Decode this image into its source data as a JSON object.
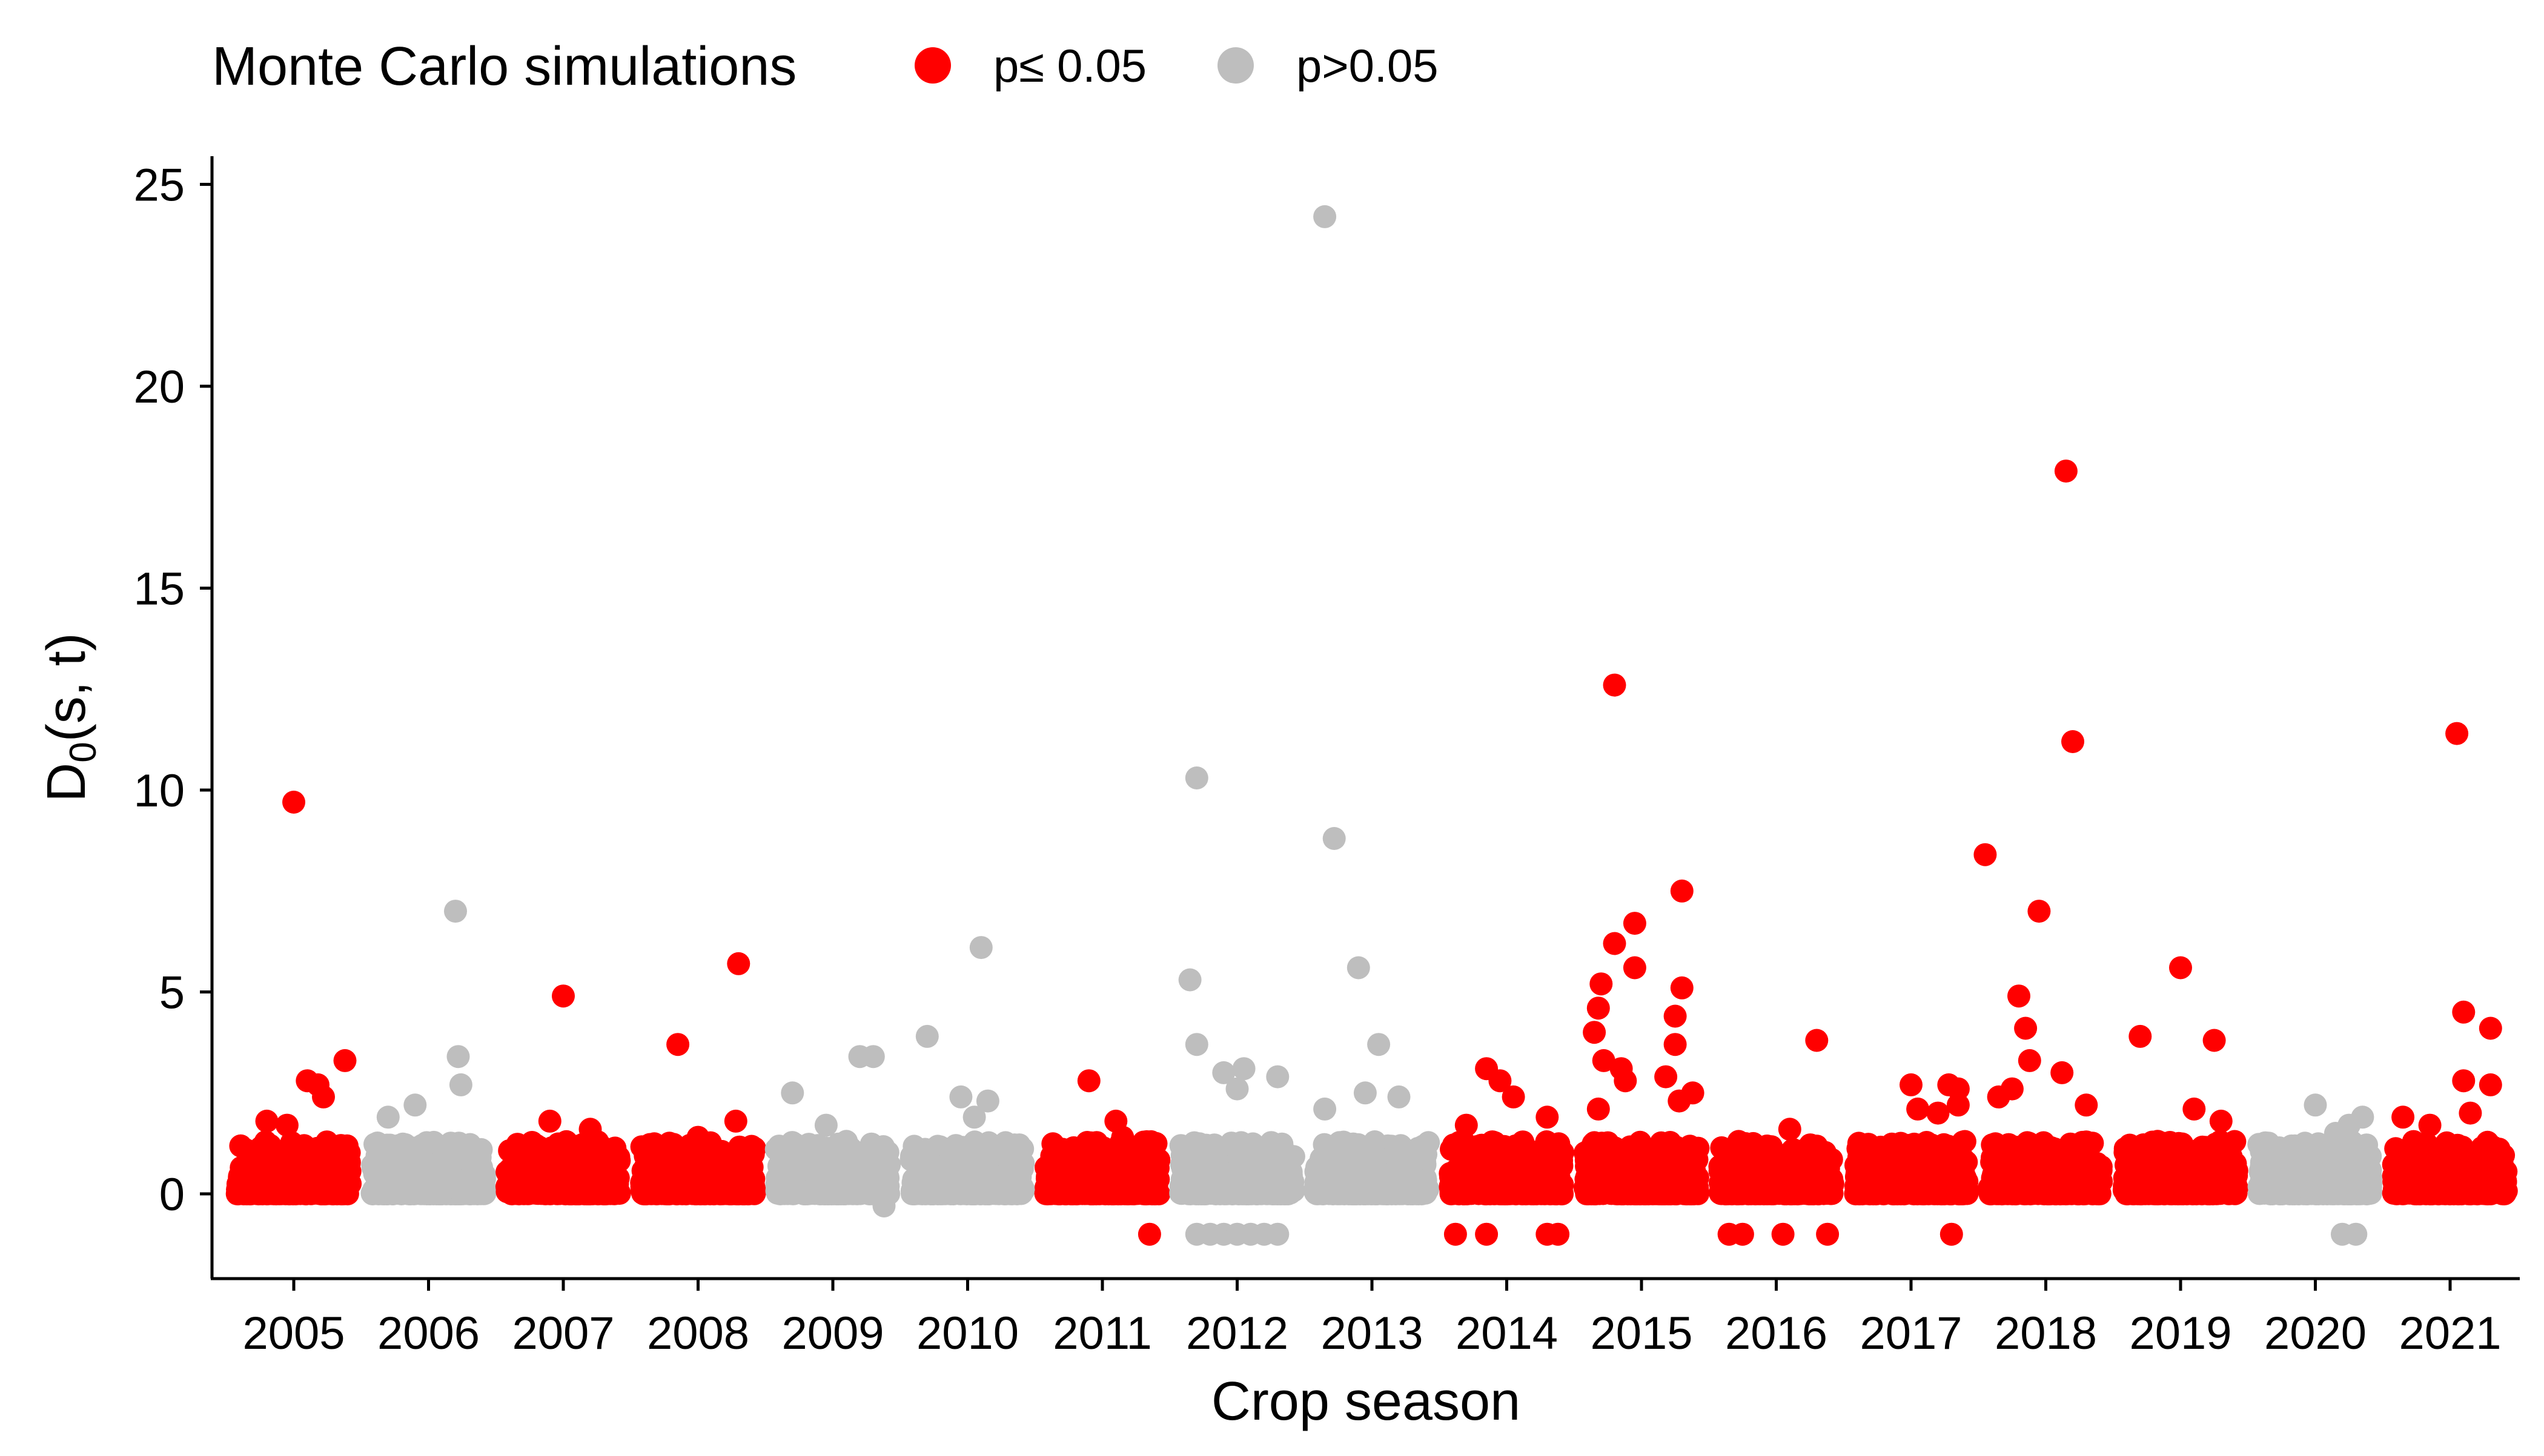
{
  "chart_data": {
    "type": "scatter",
    "xlabel": "Crop season",
    "ylabel": "D",
    "ylabel_sub": "0",
    "ylabel_rest": "(s, t)",
    "ylim": [
      -2.3,
      25.5
    ],
    "yticks": [
      0,
      5,
      10,
      15,
      20,
      25
    ],
    "grid": false,
    "legend": {
      "title": "Monte Carlo simulations",
      "placement": "top-left",
      "entries": [
        {
          "label": "p≤ 0.05",
          "color": "#ff0000"
        },
        {
          "label": "p>0.05",
          "color": "#bebebe"
        }
      ]
    },
    "colors": {
      "sig": "#ff0000",
      "nonsig": "#bebebe"
    },
    "categories": [
      "2005",
      "2006",
      "2007",
      "2008",
      "2009",
      "2010",
      "2011",
      "2012",
      "2013",
      "2014",
      "2015",
      "2016",
      "2017",
      "2018",
      "2019",
      "2020",
      "2021"
    ],
    "significance": [
      "sig",
      "nonsig",
      "sig",
      "sig",
      "nonsig",
      "nonsig",
      "sig",
      "nonsig",
      "nonsig",
      "sig",
      "sig",
      "sig",
      "sig",
      "sig",
      "sig",
      "nonsig",
      "sig"
    ],
    "outliers": [
      {
        "season": "2005",
        "x": 0.0,
        "y": 9.7
      },
      {
        "season": "2005",
        "x": 0.38,
        "y": 3.3
      },
      {
        "season": "2005",
        "x": 0.1,
        "y": 2.8
      },
      {
        "season": "2005",
        "x": 0.18,
        "y": 2.7
      },
      {
        "season": "2005",
        "x": 0.22,
        "y": 2.4
      },
      {
        "season": "2005",
        "x": -0.2,
        "y": 1.8
      },
      {
        "season": "2005",
        "x": -0.05,
        "y": 1.7
      },
      {
        "season": "2006",
        "x": 0.2,
        "y": 7.0
      },
      {
        "season": "2006",
        "x": 0.22,
        "y": 3.4
      },
      {
        "season": "2006",
        "x": 0.24,
        "y": 2.7
      },
      {
        "season": "2006",
        "x": -0.3,
        "y": 1.9
      },
      {
        "season": "2006",
        "x": -0.1,
        "y": 2.2
      },
      {
        "season": "2007",
        "x": 0.0,
        "y": 4.9
      },
      {
        "season": "2007",
        "x": -0.1,
        "y": 1.8
      },
      {
        "season": "2007",
        "x": 0.2,
        "y": 1.6
      },
      {
        "season": "2008",
        "x": 0.3,
        "y": 5.7
      },
      {
        "season": "2008",
        "x": -0.15,
        "y": 3.7
      },
      {
        "season": "2008",
        "x": 0.28,
        "y": 1.8
      },
      {
        "season": "2008",
        "x": 0.0,
        "y": 1.4
      },
      {
        "season": "2009",
        "x": -0.3,
        "y": 2.5
      },
      {
        "season": "2009",
        "x": -0.05,
        "y": 1.7
      },
      {
        "season": "2009",
        "x": 0.2,
        "y": 3.4
      },
      {
        "season": "2009",
        "x": 0.3,
        "y": 3.4
      },
      {
        "season": "2009",
        "x": 0.1,
        "y": 1.3
      },
      {
        "season": "2009",
        "x": 0.38,
        "y": -0.3
      },
      {
        "season": "2010",
        "x": 0.1,
        "y": 6.1
      },
      {
        "season": "2010",
        "x": -0.3,
        "y": 3.9
      },
      {
        "season": "2010",
        "x": 0.15,
        "y": 2.3
      },
      {
        "season": "2010",
        "x": -0.05,
        "y": 2.4
      },
      {
        "season": "2010",
        "x": 0.05,
        "y": 1.9
      },
      {
        "season": "2011",
        "x": -0.1,
        "y": 2.8
      },
      {
        "season": "2011",
        "x": 0.1,
        "y": 1.8
      },
      {
        "season": "2011",
        "x": 0.15,
        "y": 1.4
      },
      {
        "season": "2011",
        "x": 0.35,
        "y": -1.0
      },
      {
        "season": "2012",
        "x": -0.3,
        "y": 10.3
      },
      {
        "season": "2012",
        "x": -0.35,
        "y": 5.3
      },
      {
        "season": "2012",
        "x": -0.3,
        "y": 3.7
      },
      {
        "season": "2012",
        "x": -0.1,
        "y": 3.0
      },
      {
        "season": "2012",
        "x": 0.05,
        "y": 3.1
      },
      {
        "season": "2012",
        "x": 0.3,
        "y": 2.9
      },
      {
        "season": "2012",
        "x": 0.0,
        "y": 2.6
      },
      {
        "season": "2012",
        "x": -0.3,
        "y": -1.0
      },
      {
        "season": "2012",
        "x": -0.2,
        "y": -1.0
      },
      {
        "season": "2012",
        "x": -0.1,
        "y": -1.0
      },
      {
        "season": "2012",
        "x": 0.0,
        "y": -1.0
      },
      {
        "season": "2012",
        "x": 0.1,
        "y": -1.0
      },
      {
        "season": "2012",
        "x": 0.2,
        "y": -1.0
      },
      {
        "season": "2012",
        "x": 0.3,
        "y": -1.0
      },
      {
        "season": "2013",
        "x": -0.35,
        "y": 24.2
      },
      {
        "season": "2013",
        "x": -0.28,
        "y": 8.8
      },
      {
        "season": "2013",
        "x": -0.1,
        "y": 5.6
      },
      {
        "season": "2013",
        "x": 0.05,
        "y": 3.7
      },
      {
        "season": "2013",
        "x": 0.2,
        "y": 2.4
      },
      {
        "season": "2013",
        "x": -0.05,
        "y": 2.5
      },
      {
        "season": "2013",
        "x": -0.35,
        "y": 2.1
      },
      {
        "season": "2014",
        "x": -0.15,
        "y": 3.1
      },
      {
        "season": "2014",
        "x": -0.05,
        "y": 2.8
      },
      {
        "season": "2014",
        "x": 0.05,
        "y": 2.4
      },
      {
        "season": "2014",
        "x": 0.3,
        "y": 1.9
      },
      {
        "season": "2014",
        "x": -0.3,
        "y": 1.7
      },
      {
        "season": "2014",
        "x": -0.38,
        "y": -1.0
      },
      {
        "season": "2014",
        "x": -0.15,
        "y": -1.0
      },
      {
        "season": "2014",
        "x": 0.3,
        "y": -1.0
      },
      {
        "season": "2014",
        "x": 0.38,
        "y": -1.0
      },
      {
        "season": "2015",
        "x": -0.2,
        "y": 12.6
      },
      {
        "season": "2015",
        "x": 0.3,
        "y": 7.5
      },
      {
        "season": "2015",
        "x": -0.05,
        "y": 6.7
      },
      {
        "season": "2015",
        "x": -0.2,
        "y": 6.2
      },
      {
        "season": "2015",
        "x": -0.05,
        "y": 5.6
      },
      {
        "season": "2015",
        "x": -0.3,
        "y": 5.2
      },
      {
        "season": "2015",
        "x": 0.3,
        "y": 5.1
      },
      {
        "season": "2015",
        "x": -0.32,
        "y": 4.6
      },
      {
        "season": "2015",
        "x": 0.25,
        "y": 4.4
      },
      {
        "season": "2015",
        "x": -0.35,
        "y": 4.0
      },
      {
        "season": "2015",
        "x": 0.25,
        "y": 3.7
      },
      {
        "season": "2015",
        "x": -0.28,
        "y": 3.3
      },
      {
        "season": "2015",
        "x": -0.15,
        "y": 3.1
      },
      {
        "season": "2015",
        "x": -0.12,
        "y": 2.8
      },
      {
        "season": "2015",
        "x": 0.18,
        "y": 2.9
      },
      {
        "season": "2015",
        "x": 0.38,
        "y": 2.5
      },
      {
        "season": "2015",
        "x": 0.28,
        "y": 2.3
      },
      {
        "season": "2015",
        "x": -0.32,
        "y": 2.1
      },
      {
        "season": "2016",
        "x": 0.3,
        "y": 3.8
      },
      {
        "season": "2016",
        "x": 0.1,
        "y": 1.6
      },
      {
        "season": "2016",
        "x": -0.35,
        "y": -1.0
      },
      {
        "season": "2016",
        "x": -0.25,
        "y": -1.0
      },
      {
        "season": "2016",
        "x": 0.05,
        "y": -1.0
      },
      {
        "season": "2016",
        "x": 0.38,
        "y": -1.0
      },
      {
        "season": "2017",
        "x": 0.0,
        "y": 2.7
      },
      {
        "season": "2017",
        "x": 0.28,
        "y": 2.7
      },
      {
        "season": "2017",
        "x": 0.35,
        "y": 2.6
      },
      {
        "season": "2017",
        "x": 0.35,
        "y": 2.2
      },
      {
        "season": "2017",
        "x": 0.05,
        "y": 2.1
      },
      {
        "season": "2017",
        "x": 0.2,
        "y": 2.0
      },
      {
        "season": "2017",
        "x": 0.3,
        "y": -1.0
      },
      {
        "season": "2018",
        "x": 0.15,
        "y": 17.9
      },
      {
        "season": "2018",
        "x": 0.2,
        "y": 11.2
      },
      {
        "season": "2018",
        "x": -0.45,
        "y": 8.4
      },
      {
        "season": "2018",
        "x": -0.05,
        "y": 7.0
      },
      {
        "season": "2018",
        "x": -0.2,
        "y": 4.9
      },
      {
        "season": "2018",
        "x": -0.15,
        "y": 4.1
      },
      {
        "season": "2018",
        "x": -0.12,
        "y": 3.3
      },
      {
        "season": "2018",
        "x": 0.12,
        "y": 3.0
      },
      {
        "season": "2018",
        "x": -0.35,
        "y": 2.4
      },
      {
        "season": "2018",
        "x": -0.25,
        "y": 2.6
      },
      {
        "season": "2018",
        "x": 0.3,
        "y": 2.2
      },
      {
        "season": "2019",
        "x": -0.3,
        "y": 3.9
      },
      {
        "season": "2019",
        "x": 0.0,
        "y": 5.6
      },
      {
        "season": "2019",
        "x": 0.25,
        "y": 3.8
      },
      {
        "season": "2019",
        "x": 0.1,
        "y": 2.1
      },
      {
        "season": "2019",
        "x": 0.3,
        "y": 1.8
      },
      {
        "season": "2020",
        "x": 0.0,
        "y": 2.2
      },
      {
        "season": "2020",
        "x": 0.25,
        "y": 1.7
      },
      {
        "season": "2020",
        "x": 0.35,
        "y": 1.9
      },
      {
        "season": "2020",
        "x": 0.15,
        "y": 1.5
      },
      {
        "season": "2020",
        "x": 0.2,
        "y": -1.0
      },
      {
        "season": "2020",
        "x": 0.3,
        "y": -1.0
      },
      {
        "season": "2021",
        "x": 0.05,
        "y": 11.4
      },
      {
        "season": "2021",
        "x": 0.1,
        "y": 4.5
      },
      {
        "season": "2021",
        "x": 0.3,
        "y": 4.1
      },
      {
        "season": "2021",
        "x": 0.1,
        "y": 2.8
      },
      {
        "season": "2021",
        "x": 0.3,
        "y": 2.7
      },
      {
        "season": "2021",
        "x": 0.15,
        "y": 2.0
      },
      {
        "season": "2021",
        "x": -0.35,
        "y": 1.9
      },
      {
        "season": "2021",
        "x": -0.15,
        "y": 1.7
      }
    ]
  }
}
